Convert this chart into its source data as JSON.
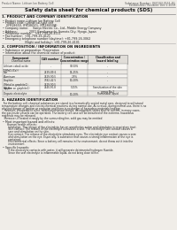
{
  "bg_color": "#f0ede8",
  "header_left": "Product Name: Lithium Ion Battery Cell",
  "header_right1": "Substance Number: Q60103-X151-D1",
  "header_right2": "Established / Revision: Dec.1.2019",
  "main_title": "Safety data sheet for chemical products (SDS)",
  "s1_title": "1. PRODUCT AND COMPANY IDENTIFICATION",
  "s1_lines": [
    " • Product name: Lithium Ion Battery Cell",
    " • Product code: Cylindrical-type cell",
    "     (IFR18650, IFR18650L, IFR18650A)",
    " • Company name:     Sanyo Electric Co., Ltd., Mobile Energy Company",
    " • Address:             2001 Kamikamachi, Sumoto-City, Hyogo, Japan",
    " • Telephone number:   +81-799-26-4111",
    " • Fax number:  +81-799-26-4121",
    " • Emergency telephone number (daytime): +81-799-26-3062",
    "                          (Night and holiday): +81-799-26-4101"
  ],
  "s2_title": "2. COMPOSITION / INFORMATION ON INGREDIENTS",
  "s2_lines": [
    " • Substance or preparation: Preparation",
    " • Information about the chemical nature of product:"
  ],
  "tbl_h_comp": "Component",
  "tbl_h_chem": "Chemical name",
  "tbl_h_cas": "CAS number",
  "tbl_h_conc": "Concentration /",
  "tbl_h_conc2": "Concentration range",
  "tbl_h_class": "Classification and",
  "tbl_h_class2": "hazard labeling",
  "tbl_rows": [
    [
      "Lithium cobalt oxide",
      "",
      "30-50%",
      ""
    ],
    [
      "(LiMnO2(Co))",
      "-",
      "",
      "-"
    ],
    [
      "Iron",
      "7439-89-6",
      "15-25%",
      "-"
    ],
    [
      "Aluminum",
      "7429-90-5",
      "2-5%",
      "-"
    ],
    [
      "Graphite",
      "",
      "10-20%",
      ""
    ],
    [
      "(Metal in graphite1)",
      "7782-42-5",
      "",
      "-"
    ],
    [
      "(Al-film on graphite1)",
      "7429-90-5",
      "",
      ""
    ],
    [
      "Copper",
      "7440-50-8",
      "5-15%",
      "Sensitization of the skin"
    ],
    [
      "",
      "",
      "",
      "group No.2"
    ],
    [
      "Organic electrolyte",
      "-",
      "10-20%",
      "Flammable liquid"
    ]
  ],
  "s3_title": "3. HAZARDS IDENTIFICATION",
  "s3_lines": [
    "  For the battery cell, chemical substances are stored in a hermetically sealed metal case, designed to withstand",
    "temperature changes and electro-chemical reactions during normal use. As a result, during normal-use, there is no",
    "physical danger of ignition or explosion and there is no danger of hazardous materials leakage.",
    "   However, if exposed to a fire, added mechanical shocks, decomposed, under electric current, in many cases,",
    "the gas inside vessels can be operated. The battery cell case will be breached of the extreme, hazardous",
    "materials may be released.",
    "   Moreover, if heated strongly by the surrounding fire, solid gas may be emitted."
  ],
  "s3_b1": " • Most important hazard and effects:",
  "s3_human": "    Human health effects:",
  "s3_sub": [
    "      Inhalation: The release of the electrolyte has an anesthetics action and stimulates in respiratory tract.",
    "      Skin contact: The release of the electrolyte stimulates a skin. The electrolyte skin contact causes a",
    "      sore and stimulation on the skin.",
    "      Eye contact: The release of the electrolyte stimulates eyes. The electrolyte eye contact causes a sore",
    "      and stimulation on the eye. Especially, a substance that causes a strong inflammation of the eye is",
    "      contained.",
    "      Environmental effects: Since a battery cell remains in the environment, do not throw out it into the",
    "      environment."
  ],
  "s3_b2": " • Specific hazards:",
  "s3_spec": [
    "      If the electrolyte contacts with water, it will generate detrimental hydrogen fluoride.",
    "      Since the seal electrolyte is inflammable liquid, do not bring close to fire."
  ]
}
